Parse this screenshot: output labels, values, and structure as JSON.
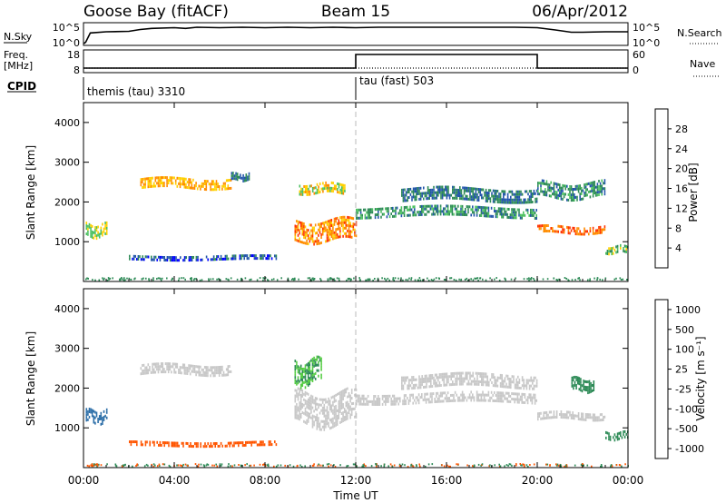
{
  "header": {
    "station": "Goose Bay (fitACF)",
    "beam": "Beam 15",
    "date": "06/Apr/2012"
  },
  "noise_panel": {
    "left_label": "N.Sky",
    "left_ticks": [
      "10^5",
      "10^0"
    ],
    "right_ticks": [
      "10^5",
      "10^0"
    ],
    "right_label": "N.Search",
    "profile": [
      [
        0,
        0.1
      ],
      [
        0.05,
        0.1
      ],
      [
        0.1,
        0.15
      ],
      [
        0.3,
        0.55
      ],
      [
        1,
        0.6
      ],
      [
        2,
        0.62
      ],
      [
        2.5,
        0.7
      ],
      [
        3,
        0.75
      ],
      [
        4,
        0.78
      ],
      [
        4.5,
        0.75
      ],
      [
        5,
        0.8
      ],
      [
        6,
        0.78
      ],
      [
        7,
        0.8
      ],
      [
        8,
        0.78
      ],
      [
        9,
        0.8
      ],
      [
        10,
        0.78
      ],
      [
        11,
        0.8
      ],
      [
        12,
        0.78
      ],
      [
        13,
        0.8
      ],
      [
        14,
        0.8
      ],
      [
        15,
        0.8
      ],
      [
        16,
        0.8
      ],
      [
        17,
        0.8
      ],
      [
        18,
        0.8
      ],
      [
        19,
        0.8
      ],
      [
        20,
        0.78
      ],
      [
        20.8,
        0.68
      ],
      [
        21.5,
        0.58
      ],
      [
        22,
        0.58
      ],
      [
        23,
        0.6
      ],
      [
        24,
        0.6
      ]
    ]
  },
  "freq_panel": {
    "left_label_line1": "Freq.",
    "left_label_line2": "[MHz]",
    "left_ticks": [
      "18",
      "8"
    ],
    "right_ticks": [
      "60",
      "0"
    ],
    "right_label": "Nave",
    "freq_profile": [
      [
        0,
        0.2
      ],
      [
        24,
        0.2
      ]
    ],
    "nave_segments": [
      [
        0,
        12,
        0.2
      ],
      [
        12,
        20,
        0.8
      ],
      [
        20,
        24,
        0.2
      ]
    ]
  },
  "cpid_panel": {
    "label": "CPID",
    "programs": [
      {
        "name": "themis (tau) 3310",
        "start": 0
      },
      {
        "name": "tau (fast) 503",
        "start": 12
      }
    ]
  },
  "chart_data": [
    {
      "type": "heatmap",
      "title": "",
      "ylabel": "Slant Range [km]",
      "xlabel": "",
      "xlim": [
        0,
        24
      ],
      "ylim": [
        0,
        4500
      ],
      "yticks": [
        "1000",
        "2000",
        "3000",
        "4000"
      ],
      "colorbar_label": "Power [dB]",
      "colorbar_ticks": [
        "4",
        "8",
        "12",
        "16",
        "20",
        "24",
        "28"
      ],
      "colorbar_colors": [
        "#0000ff",
        "#2255aa",
        "#2e8b57",
        "#4cc060",
        "#ffd000",
        "#ff8c00",
        "#ff3300",
        "#ee0000"
      ],
      "echo_regions": [
        {
          "t0": 2.5,
          "t1": 6.5,
          "r_center": 2480,
          "r_half": 120,
          "value": 20
        },
        {
          "t0": 6.5,
          "t1": 7.3,
          "r_center": 2650,
          "r_half": 80,
          "value": 8
        },
        {
          "t0": 0.1,
          "t1": 1.0,
          "r_center": 1300,
          "r_half": 150,
          "value": 16
        },
        {
          "t0": 9.3,
          "t1": 12.0,
          "r_center": 1300,
          "r_half": 250,
          "value": 22
        },
        {
          "t0": 9.5,
          "t1": 11.5,
          "r_center": 2350,
          "r_half": 120,
          "value": 18
        },
        {
          "t0": 12.0,
          "t1": 20.0,
          "r_center": 1750,
          "r_half": 130,
          "value": 10
        },
        {
          "t0": 14.0,
          "t1": 20.0,
          "r_center": 2200,
          "r_half": 150,
          "value": 8
        },
        {
          "t0": 20.0,
          "t1": 23.0,
          "r_center": 1300,
          "r_half": 100,
          "value": 24
        },
        {
          "t0": 20.0,
          "t1": 23.0,
          "r_center": 2300,
          "r_half": 200,
          "value": 10
        },
        {
          "t0": 2.0,
          "t1": 8.5,
          "r_center": 600,
          "r_half": 60,
          "value": 6
        },
        {
          "t0": 23.0,
          "t1": 24.0,
          "r_center": 800,
          "r_half": 100,
          "value": 14
        }
      ]
    },
    {
      "type": "heatmap",
      "title": "",
      "ylabel": "Slant Range [km]",
      "xlabel": "Time UT",
      "xlim": [
        0,
        24
      ],
      "ylim": [
        0,
        4500
      ],
      "xticks": [
        "00:00",
        "04:00",
        "08:00",
        "12:00",
        "16:00",
        "20:00",
        "00:00"
      ],
      "yticks": [
        "1000",
        "2000",
        "3000",
        "4000"
      ],
      "colorbar_label": "Velocity [m s⁻¹]",
      "colorbar_ticks": [
        "1000",
        "500",
        "100",
        "25",
        "-25",
        "-100",
        "-500",
        "-1000"
      ],
      "colorbar_colors": [
        "#1a3fcc",
        "#2d6fa8",
        "#2e8b57",
        "#55cc44",
        "#c8c8c8",
        "#ff9922",
        "#ff5500",
        "#ee0000"
      ],
      "echo_regions": [
        {
          "t0": 2.5,
          "t1": 6.5,
          "r_center": 2480,
          "r_half": 120,
          "value": 0
        },
        {
          "t0": 0.1,
          "t1": 1.0,
          "r_center": 1300,
          "r_half": 150,
          "value": 600
        },
        {
          "t0": 9.3,
          "t1": 12.0,
          "r_center": 1500,
          "r_half": 400,
          "value": 0
        },
        {
          "t0": 9.3,
          "t1": 10.5,
          "r_center": 2400,
          "r_half": 300,
          "value": 100
        },
        {
          "t0": 12.0,
          "t1": 20.0,
          "r_center": 1750,
          "r_half": 130,
          "value": 0
        },
        {
          "t0": 14.0,
          "t1": 20.0,
          "r_center": 2200,
          "r_half": 150,
          "value": 0
        },
        {
          "t0": 20.0,
          "t1": 23.0,
          "r_center": 1300,
          "r_half": 100,
          "value": 0
        },
        {
          "t0": 21.5,
          "t1": 22.5,
          "r_center": 2100,
          "r_half": 150,
          "value": 300
        },
        {
          "t0": 2.0,
          "t1": 8.5,
          "r_center": 600,
          "r_half": 60,
          "value": -150
        },
        {
          "t0": 23.0,
          "t1": 24.0,
          "r_center": 800,
          "r_half": 100,
          "value": 300
        }
      ]
    }
  ]
}
